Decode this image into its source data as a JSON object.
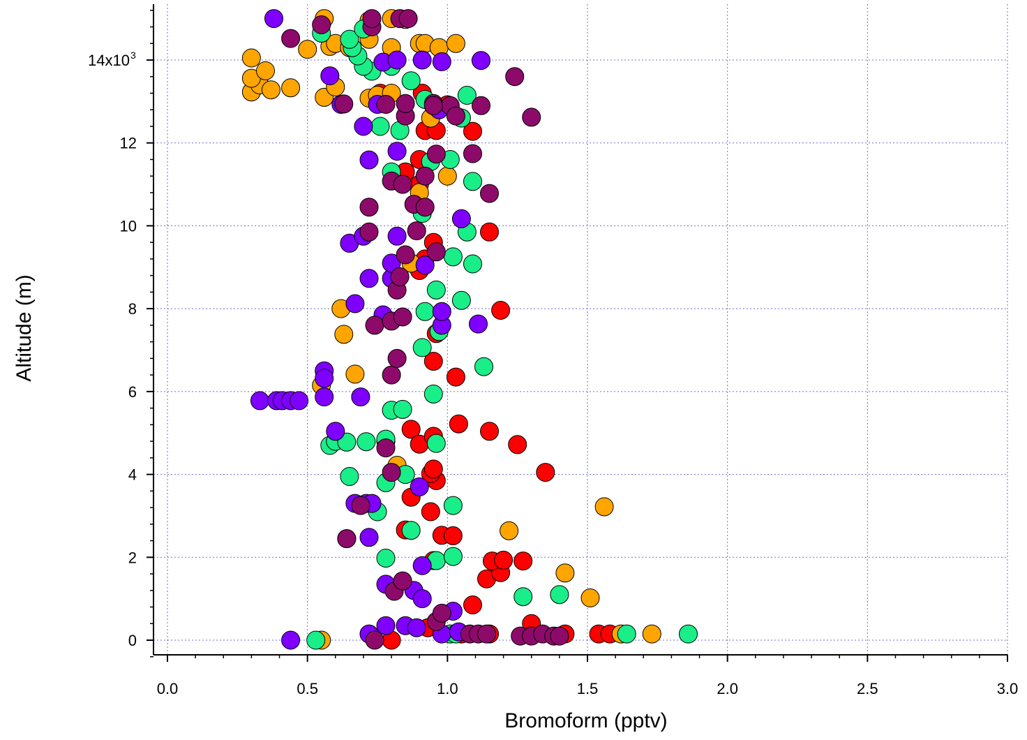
{
  "chart_data": {
    "type": "scatter",
    "title": "",
    "xlabel": "Bromoform (pptv)",
    "ylabel": "Altitude (m)",
    "xlim": [
      -0.05,
      3.0
    ],
    "ylim": [
      -350,
      15300
    ],
    "x_ticks": [
      {
        "value": 0.0,
        "label": "0.0"
      },
      {
        "value": 0.5,
        "label": "0.5"
      },
      {
        "value": 1.0,
        "label": "1.0"
      },
      {
        "value": 1.5,
        "label": "1.5"
      },
      {
        "value": 2.0,
        "label": "2.0"
      },
      {
        "value": 2.5,
        "label": "2.5"
      },
      {
        "value": 3.0,
        "label": "3.0"
      }
    ],
    "y_ticks": [
      {
        "value": 0,
        "label": "0"
      },
      {
        "value": 2000,
        "label": "2"
      },
      {
        "value": 4000,
        "label": "4"
      },
      {
        "value": 6000,
        "label": "6"
      },
      {
        "value": 8000,
        "label": "8"
      },
      {
        "value": 10000,
        "label": "10"
      },
      {
        "value": 12000,
        "label": "12"
      },
      {
        "value": 14000,
        "label": "14x10"
      }
    ],
    "y_top_label_exponent": "3",
    "grid": true,
    "colors": {
      "red": "#ff0000",
      "orange": "#ffa500",
      "green": "#1aee88",
      "violet": "#7f00ff",
      "plum": "#8e0a6a",
      "grid": "#6b6bd6"
    },
    "series": [
      {
        "color": "#ff0000",
        "points": [
          [
            0.8,
            0
          ],
          [
            0.93,
            300
          ],
          [
            1.05,
            150
          ],
          [
            1.15,
            150
          ],
          [
            1.3,
            400
          ],
          [
            1.42,
            150
          ],
          [
            1.54,
            150
          ],
          [
            1.58,
            150
          ],
          [
            1.09,
            850
          ],
          [
            1.14,
            1480
          ],
          [
            1.19,
            1630
          ],
          [
            1.16,
            1910
          ],
          [
            1.2,
            1930
          ],
          [
            1.27,
            1910
          ],
          [
            0.95,
            1920
          ],
          [
            0.98,
            2530
          ],
          [
            1.02,
            2520
          ],
          [
            0.85,
            2660
          ],
          [
            0.94,
            3100
          ],
          [
            0.87,
            3450
          ],
          [
            0.96,
            3850
          ],
          [
            0.94,
            4020
          ],
          [
            0.95,
            4130
          ],
          [
            1.35,
            4050
          ],
          [
            0.87,
            5090
          ],
          [
            0.9,
            4730
          ],
          [
            0.95,
            4920
          ],
          [
            1.04,
            5220
          ],
          [
            1.15,
            5040
          ],
          [
            1.25,
            4720
          ],
          [
            0.95,
            6730
          ],
          [
            1.03,
            6350
          ],
          [
            0.96,
            7400
          ],
          [
            1.19,
            7960
          ],
          [
            0.9,
            8920
          ],
          [
            0.95,
            9600
          ],
          [
            0.92,
            9200
          ],
          [
            1.15,
            9850
          ],
          [
            0.9,
            11000
          ],
          [
            0.85,
            11300
          ],
          [
            0.9,
            11600
          ],
          [
            0.92,
            12300
          ],
          [
            0.96,
            12300
          ],
          [
            1.09,
            12280
          ],
          [
            0.95,
            12900
          ],
          [
            1.0,
            12920
          ],
          [
            0.91,
            13200
          ],
          [
            0.76,
            13200
          ]
        ]
      },
      {
        "color": "#ffa500",
        "points": [
          [
            0.55,
            0
          ],
          [
            1.62,
            150
          ],
          [
            1.73,
            150
          ],
          [
            1.51,
            1020
          ],
          [
            1.42,
            1620
          ],
          [
            1.22,
            2640
          ],
          [
            1.56,
            3220
          ],
          [
            0.82,
            4220
          ],
          [
            0.55,
            6150
          ],
          [
            0.67,
            6420
          ],
          [
            0.63,
            7380
          ],
          [
            0.62,
            8000
          ],
          [
            0.87,
            9100
          ],
          [
            0.9,
            10800
          ],
          [
            1.0,
            11200
          ],
          [
            0.94,
            12600
          ],
          [
            0.3,
            13230
          ],
          [
            0.33,
            13400
          ],
          [
            0.37,
            13280
          ],
          [
            0.44,
            13330
          ],
          [
            0.3,
            13560
          ],
          [
            0.35,
            13740
          ],
          [
            0.3,
            14050
          ],
          [
            0.56,
            13100
          ],
          [
            0.6,
            13350
          ],
          [
            0.72,
            13080
          ],
          [
            0.75,
            13150
          ],
          [
            0.8,
            13200
          ],
          [
            0.5,
            14260
          ],
          [
            0.58,
            14330
          ],
          [
            0.6,
            14400
          ],
          [
            0.65,
            14300
          ],
          [
            0.72,
            14500
          ],
          [
            0.8,
            14300
          ],
          [
            0.9,
            14400
          ],
          [
            0.92,
            14400
          ],
          [
            0.97,
            14300
          ],
          [
            1.03,
            14400
          ],
          [
            0.56,
            15000
          ],
          [
            0.72,
            14950
          ],
          [
            0.8,
            15000
          ],
          [
            0.85,
            14980
          ]
        ]
      },
      {
        "color": "#1aee88",
        "points": [
          [
            0.53,
            0
          ],
          [
            1.01,
            150
          ],
          [
            1.03,
            150
          ],
          [
            1.64,
            150
          ],
          [
            1.86,
            150
          ],
          [
            1.27,
            1050
          ],
          [
            1.4,
            1100
          ],
          [
            0.78,
            1980
          ],
          [
            0.96,
            1920
          ],
          [
            1.02,
            2020
          ],
          [
            0.87,
            2650
          ],
          [
            0.75,
            3100
          ],
          [
            1.02,
            3250
          ],
          [
            0.78,
            3800
          ],
          [
            0.85,
            4000
          ],
          [
            0.65,
            3950
          ],
          [
            0.58,
            4700
          ],
          [
            0.6,
            4800
          ],
          [
            0.64,
            4780
          ],
          [
            0.71,
            4790
          ],
          [
            0.78,
            4800
          ],
          [
            0.78,
            4850
          ],
          [
            0.96,
            4750
          ],
          [
            0.8,
            5550
          ],
          [
            0.84,
            5570
          ],
          [
            0.95,
            5940
          ],
          [
            1.13,
            6600
          ],
          [
            0.91,
            7060
          ],
          [
            0.97,
            7450
          ],
          [
            0.92,
            7930
          ],
          [
            0.96,
            8450
          ],
          [
            1.05,
            8200
          ],
          [
            1.02,
            9250
          ],
          [
            1.09,
            9080
          ],
          [
            1.07,
            9850
          ],
          [
            0.91,
            10300
          ],
          [
            1.09,
            11070
          ],
          [
            0.8,
            11300
          ],
          [
            0.94,
            11550
          ],
          [
            1.01,
            11600
          ],
          [
            0.76,
            12400
          ],
          [
            0.83,
            12300
          ],
          [
            0.92,
            13050
          ],
          [
            1.05,
            12600
          ],
          [
            1.07,
            13150
          ],
          [
            0.87,
            13500
          ],
          [
            0.73,
            13730
          ],
          [
            0.8,
            13850
          ],
          [
            0.7,
            13850
          ],
          [
            0.68,
            14100
          ],
          [
            0.66,
            14300
          ],
          [
            0.65,
            14500
          ],
          [
            0.55,
            14650
          ],
          [
            0.7,
            14750
          ]
        ]
      },
      {
        "color": "#7f00ff",
        "points": [
          [
            0.44,
            0
          ],
          [
            0.72,
            150
          ],
          [
            0.78,
            350
          ],
          [
            0.85,
            350
          ],
          [
            0.89,
            300
          ],
          [
            0.98,
            150
          ],
          [
            1.04,
            200
          ],
          [
            1.02,
            700
          ],
          [
            0.78,
            1350
          ],
          [
            0.88,
            1200
          ],
          [
            0.91,
            1000
          ],
          [
            0.91,
            1800
          ],
          [
            0.64,
            2450
          ],
          [
            0.72,
            2480
          ],
          [
            0.67,
            3300
          ],
          [
            0.71,
            3300
          ],
          [
            0.73,
            3300
          ],
          [
            0.9,
            3700
          ],
          [
            0.6,
            5040
          ],
          [
            0.33,
            5780
          ],
          [
            0.39,
            5780
          ],
          [
            0.41,
            5780
          ],
          [
            0.44,
            5780
          ],
          [
            0.47,
            5780
          ],
          [
            0.56,
            5870
          ],
          [
            0.69,
            5870
          ],
          [
            0.56,
            6500
          ],
          [
            0.56,
            6320
          ],
          [
            0.67,
            8120
          ],
          [
            0.77,
            7850
          ],
          [
            0.98,
            7600
          ],
          [
            0.98,
            7930
          ],
          [
            1.11,
            7630
          ],
          [
            0.72,
            8730
          ],
          [
            0.8,
            8730
          ],
          [
            0.8,
            9100
          ],
          [
            0.92,
            9050
          ],
          [
            0.65,
            9580
          ],
          [
            0.7,
            9750
          ],
          [
            0.82,
            9750
          ],
          [
            1.05,
            10170
          ],
          [
            0.72,
            11590
          ],
          [
            0.82,
            11800
          ],
          [
            0.7,
            12400
          ],
          [
            0.75,
            12930
          ],
          [
            0.62,
            12930
          ],
          [
            0.97,
            12800
          ],
          [
            0.58,
            13620
          ],
          [
            0.77,
            13950
          ],
          [
            0.82,
            14000
          ],
          [
            0.91,
            14000
          ],
          [
            0.98,
            13960
          ],
          [
            1.12,
            13990
          ],
          [
            0.38,
            15000
          ]
        ]
      },
      {
        "color": "#8e0a6a",
        "points": [
          [
            0.74,
            0
          ],
          [
            0.96,
            450
          ],
          [
            0.98,
            650
          ],
          [
            1.08,
            150
          ],
          [
            1.11,
            150
          ],
          [
            1.14,
            150
          ],
          [
            1.26,
            100
          ],
          [
            1.3,
            100
          ],
          [
            1.34,
            150
          ],
          [
            1.38,
            100
          ],
          [
            1.4,
            100
          ],
          [
            0.81,
            1180
          ],
          [
            0.84,
            1430
          ],
          [
            0.64,
            2450
          ],
          [
            0.69,
            3250
          ],
          [
            0.8,
            4050
          ],
          [
            0.78,
            4640
          ],
          [
            0.8,
            6400
          ],
          [
            0.82,
            6800
          ],
          [
            0.74,
            7600
          ],
          [
            0.8,
            7700
          ],
          [
            0.84,
            7800
          ],
          [
            0.82,
            8450
          ],
          [
            0.83,
            8770
          ],
          [
            0.85,
            9300
          ],
          [
            0.96,
            9370
          ],
          [
            0.72,
            9850
          ],
          [
            0.89,
            9880
          ],
          [
            0.72,
            10450
          ],
          [
            0.88,
            10520
          ],
          [
            0.92,
            10450
          ],
          [
            0.8,
            11080
          ],
          [
            0.84,
            11000
          ],
          [
            0.92,
            11200
          ],
          [
            0.96,
            11730
          ],
          [
            1.09,
            11740
          ],
          [
            1.15,
            10780
          ],
          [
            0.85,
            12650
          ],
          [
            0.63,
            12940
          ],
          [
            0.78,
            12930
          ],
          [
            0.85,
            12950
          ],
          [
            0.95,
            12950
          ],
          [
            1.01,
            12900
          ],
          [
            1.03,
            12650
          ],
          [
            1.12,
            12900
          ],
          [
            1.3,
            12620
          ],
          [
            1.24,
            13600
          ],
          [
            0.44,
            14520
          ],
          [
            0.55,
            14850
          ],
          [
            0.73,
            14800
          ],
          [
            0.73,
            15000
          ],
          [
            0.83,
            15000
          ],
          [
            0.86,
            15000
          ],
          [
            0.95,
            12900
          ]
        ]
      }
    ]
  }
}
